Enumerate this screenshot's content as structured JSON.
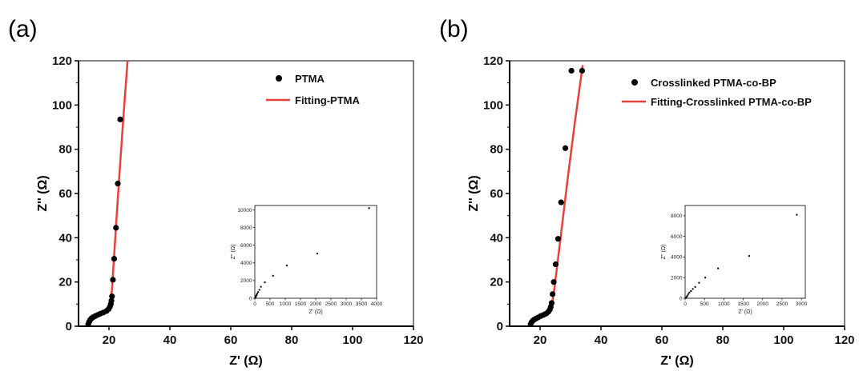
{
  "chart_data": [
    {
      "type": "scatter",
      "panel_label": "(a)",
      "xlabel": "Z' (Ω)",
      "ylabel": "Z'' (Ω)",
      "xlim": [
        10,
        120
      ],
      "ylim": [
        0,
        120
      ],
      "xticks": [
        20,
        40,
        60,
        80,
        100,
        120
      ],
      "yticks": [
        0,
        20,
        40,
        60,
        80,
        100,
        120
      ],
      "legend_position": "top-right",
      "series": [
        {
          "name": "PTMA",
          "kind": "markers",
          "color": "#000000",
          "x": [
            13.2,
            13.5,
            13.9,
            14.3,
            14.8,
            15.5,
            16.3,
            17.2,
            18.2,
            19.2,
            19.9,
            20.3,
            20.6,
            20.8,
            21.0,
            21.3,
            21.7,
            22.3,
            22.9,
            23.7
          ],
          "y": [
            1.0,
            2.0,
            3.0,
            3.6,
            4.1,
            4.6,
            5.1,
            5.7,
            6.2,
            6.9,
            7.8,
            8.8,
            10.0,
            11.5,
            13.5,
            21.0,
            30.5,
            44.5,
            64.5,
            93.5
          ]
        },
        {
          "name": "Fitting-PTMA",
          "kind": "line",
          "color": "#e8413c",
          "x": [
            12.9,
            13.3,
            13.9,
            14.7,
            15.7,
            16.9,
            18.1,
            19.1,
            19.8,
            20.2,
            20.5,
            20.7,
            21.0,
            21.6,
            22.4,
            23.4,
            24.7,
            26.1
          ],
          "y": [
            0.0,
            1.6,
            3.0,
            4.0,
            4.7,
            5.4,
            6.1,
            6.9,
            8.0,
            9.2,
            10.8,
            13.0,
            17.0,
            30.0,
            47.0,
            68.0,
            94.0,
            120.0
          ]
        }
      ],
      "inset": {
        "type": "scatter",
        "xlabel": "Z' (Ω)",
        "ylabel": "Z'' (Ω)",
        "xlim": [
          0,
          4000
        ],
        "ylim": [
          0,
          10500
        ],
        "xticks": [
          0,
          500,
          1000,
          1500,
          2000,
          2500,
          3000,
          3500,
          4000
        ],
        "yticks": [
          0,
          2000,
          4000,
          6000,
          8000,
          10000
        ],
        "x": [
          15,
          25,
          40,
          60,
          80,
          110,
          150,
          200,
          330,
          600,
          1050,
          2050,
          3750
        ],
        "y": [
          40,
          120,
          250,
          380,
          520,
          700,
          950,
          1300,
          1800,
          2550,
          3700,
          5050,
          10200
        ]
      }
    },
    {
      "type": "scatter",
      "panel_label": "(b)",
      "xlabel": "Z' (Ω)",
      "ylabel": "Z'' (Ω)",
      "xlim": [
        10,
        120
      ],
      "ylim": [
        0,
        120
      ],
      "xticks": [
        20,
        40,
        60,
        80,
        100,
        120
      ],
      "yticks": [
        0,
        20,
        40,
        60,
        80,
        100,
        120
      ],
      "legend_position": "top-right",
      "series": [
        {
          "name": "Crosslinked PTMA-co-BP",
          "kind": "markers",
          "color": "#000000",
          "x": [
            16.9,
            17.2,
            17.6,
            18.1,
            18.7,
            19.4,
            20.2,
            21.1,
            22.0,
            22.7,
            23.2,
            23.5,
            23.8,
            24.1,
            24.5,
            25.1,
            25.9,
            26.9,
            28.3,
            30.3,
            33.8
          ],
          "y": [
            1.0,
            1.8,
            2.5,
            3.0,
            3.5,
            4.0,
            4.6,
            5.1,
            5.7,
            6.5,
            7.5,
            8.7,
            10.5,
            14.5,
            20.0,
            28.0,
            39.5,
            56.0,
            80.5,
            115.5,
            115.5
          ]
        },
        {
          "name": "Fitting-Crosslinked PTMA-co-BP",
          "kind": "line",
          "color": "#e8413c",
          "x": [
            16.5,
            17.0,
            17.8,
            18.8,
            20.0,
            21.2,
            22.3,
            23.1,
            23.6,
            24.0,
            24.5,
            25.5,
            27.0,
            29.0,
            31.5,
            34.0
          ],
          "y": [
            0.0,
            1.5,
            2.8,
            3.7,
            4.5,
            5.2,
            6.0,
            7.2,
            8.8,
            11.0,
            15.0,
            26.0,
            43.0,
            66.0,
            93.0,
            118.0
          ]
        }
      ],
      "inset": {
        "type": "scatter",
        "xlabel": "Z' (Ω)",
        "ylabel": "Z'' (Ω)",
        "xlim": [
          0,
          3100
        ],
        "ylim": [
          0,
          9000
        ],
        "xticks": [
          0,
          500,
          1000,
          1500,
          2000,
          2500,
          3000
        ],
        "yticks": [
          0,
          2000,
          4000,
          6000,
          8000
        ],
        "x": [
          20,
          35,
          55,
          80,
          110,
          150,
          200,
          260,
          360,
          520,
          850,
          1650,
          2880
        ],
        "y": [
          30,
          120,
          250,
          400,
          550,
          700,
          900,
          1100,
          1500,
          2000,
          2900,
          4100,
          8100
        ]
      }
    }
  ]
}
